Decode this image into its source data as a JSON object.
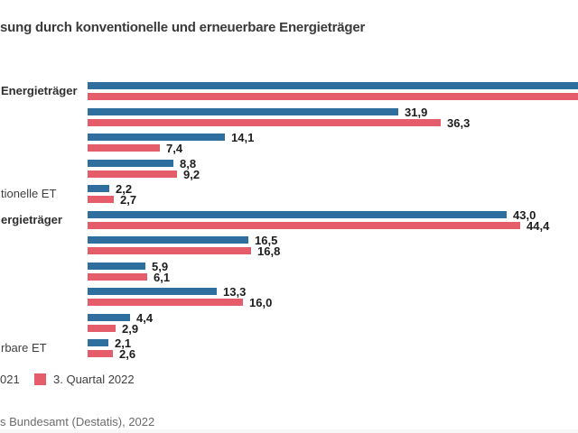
{
  "title": "sung durch konventionelle und erneuerbare Energieträger",
  "legend": {
    "item_2021_label": "021",
    "item_2022_label": "3. Quartal 2022"
  },
  "source_note": "s Bundesamt (Destatis), 2022",
  "colors": {
    "series_2021": "#2e6f9f",
    "series_2022": "#e55c6b",
    "value_text": "#1d1d1d",
    "title_text": "#3a3a3a",
    "category_text": "#3f3f3f",
    "source_text": "#6b6b6b"
  },
  "chart_data": {
    "type": "bar",
    "orientation": "horizontal",
    "title": "sung durch konventionelle und erneuerbare Energieträger",
    "legend_position": "bottom-left",
    "series_names": [
      "021",
      "3. Quartal 2022"
    ],
    "x_axis": {
      "visible_min": 0,
      "visible_max_approx": 50.4,
      "gridlines": false
    },
    "value_format": "german decimal comma",
    "rows": [
      {
        "label": "Energieträger",
        "label_bold": true,
        "v2021": null,
        "v2022": null,
        "v2021_text": "",
        "v2022_text": "",
        "bars_cut_off_right": true
      },
      {
        "label": "",
        "label_bold": false,
        "v2021": 31.9,
        "v2022": 36.3,
        "v2021_text": "31,9",
        "v2022_text": "36,3"
      },
      {
        "label": "",
        "label_bold": false,
        "v2021": 14.1,
        "v2022": 7.4,
        "v2021_text": "14,1",
        "v2022_text": "7,4"
      },
      {
        "label": "",
        "label_bold": false,
        "v2021": 8.8,
        "v2022": 9.2,
        "v2021_text": "8,8",
        "v2022_text": "9,2"
      },
      {
        "label": "tionelle ET",
        "label_bold": false,
        "v2021": 2.2,
        "v2022": 2.7,
        "v2021_text": "2,2",
        "v2022_text": "2,7"
      },
      {
        "label": "ergieträger",
        "label_bold": true,
        "v2021": 43.0,
        "v2022": 44.4,
        "v2021_text": "43,0",
        "v2022_text": "44,4"
      },
      {
        "label": "",
        "label_bold": false,
        "v2021": 16.5,
        "v2022": 16.8,
        "v2021_text": "16,5",
        "v2022_text": "16,8"
      },
      {
        "label": "",
        "label_bold": false,
        "v2021": 5.9,
        "v2022": 6.1,
        "v2021_text": "5,9",
        "v2022_text": "6,1"
      },
      {
        "label": "",
        "label_bold": false,
        "v2021": 13.3,
        "v2022": 16.0,
        "v2021_text": "13,3",
        "v2022_text": "16,0"
      },
      {
        "label": "",
        "label_bold": false,
        "v2021": 4.4,
        "v2022": 2.9,
        "v2021_text": "4,4",
        "v2022_text": "2,9"
      },
      {
        "label": "rbare ET",
        "label_bold": false,
        "v2021": 2.1,
        "v2022": 2.6,
        "v2021_text": "2,1",
        "v2022_text": "2,6"
      }
    ]
  }
}
